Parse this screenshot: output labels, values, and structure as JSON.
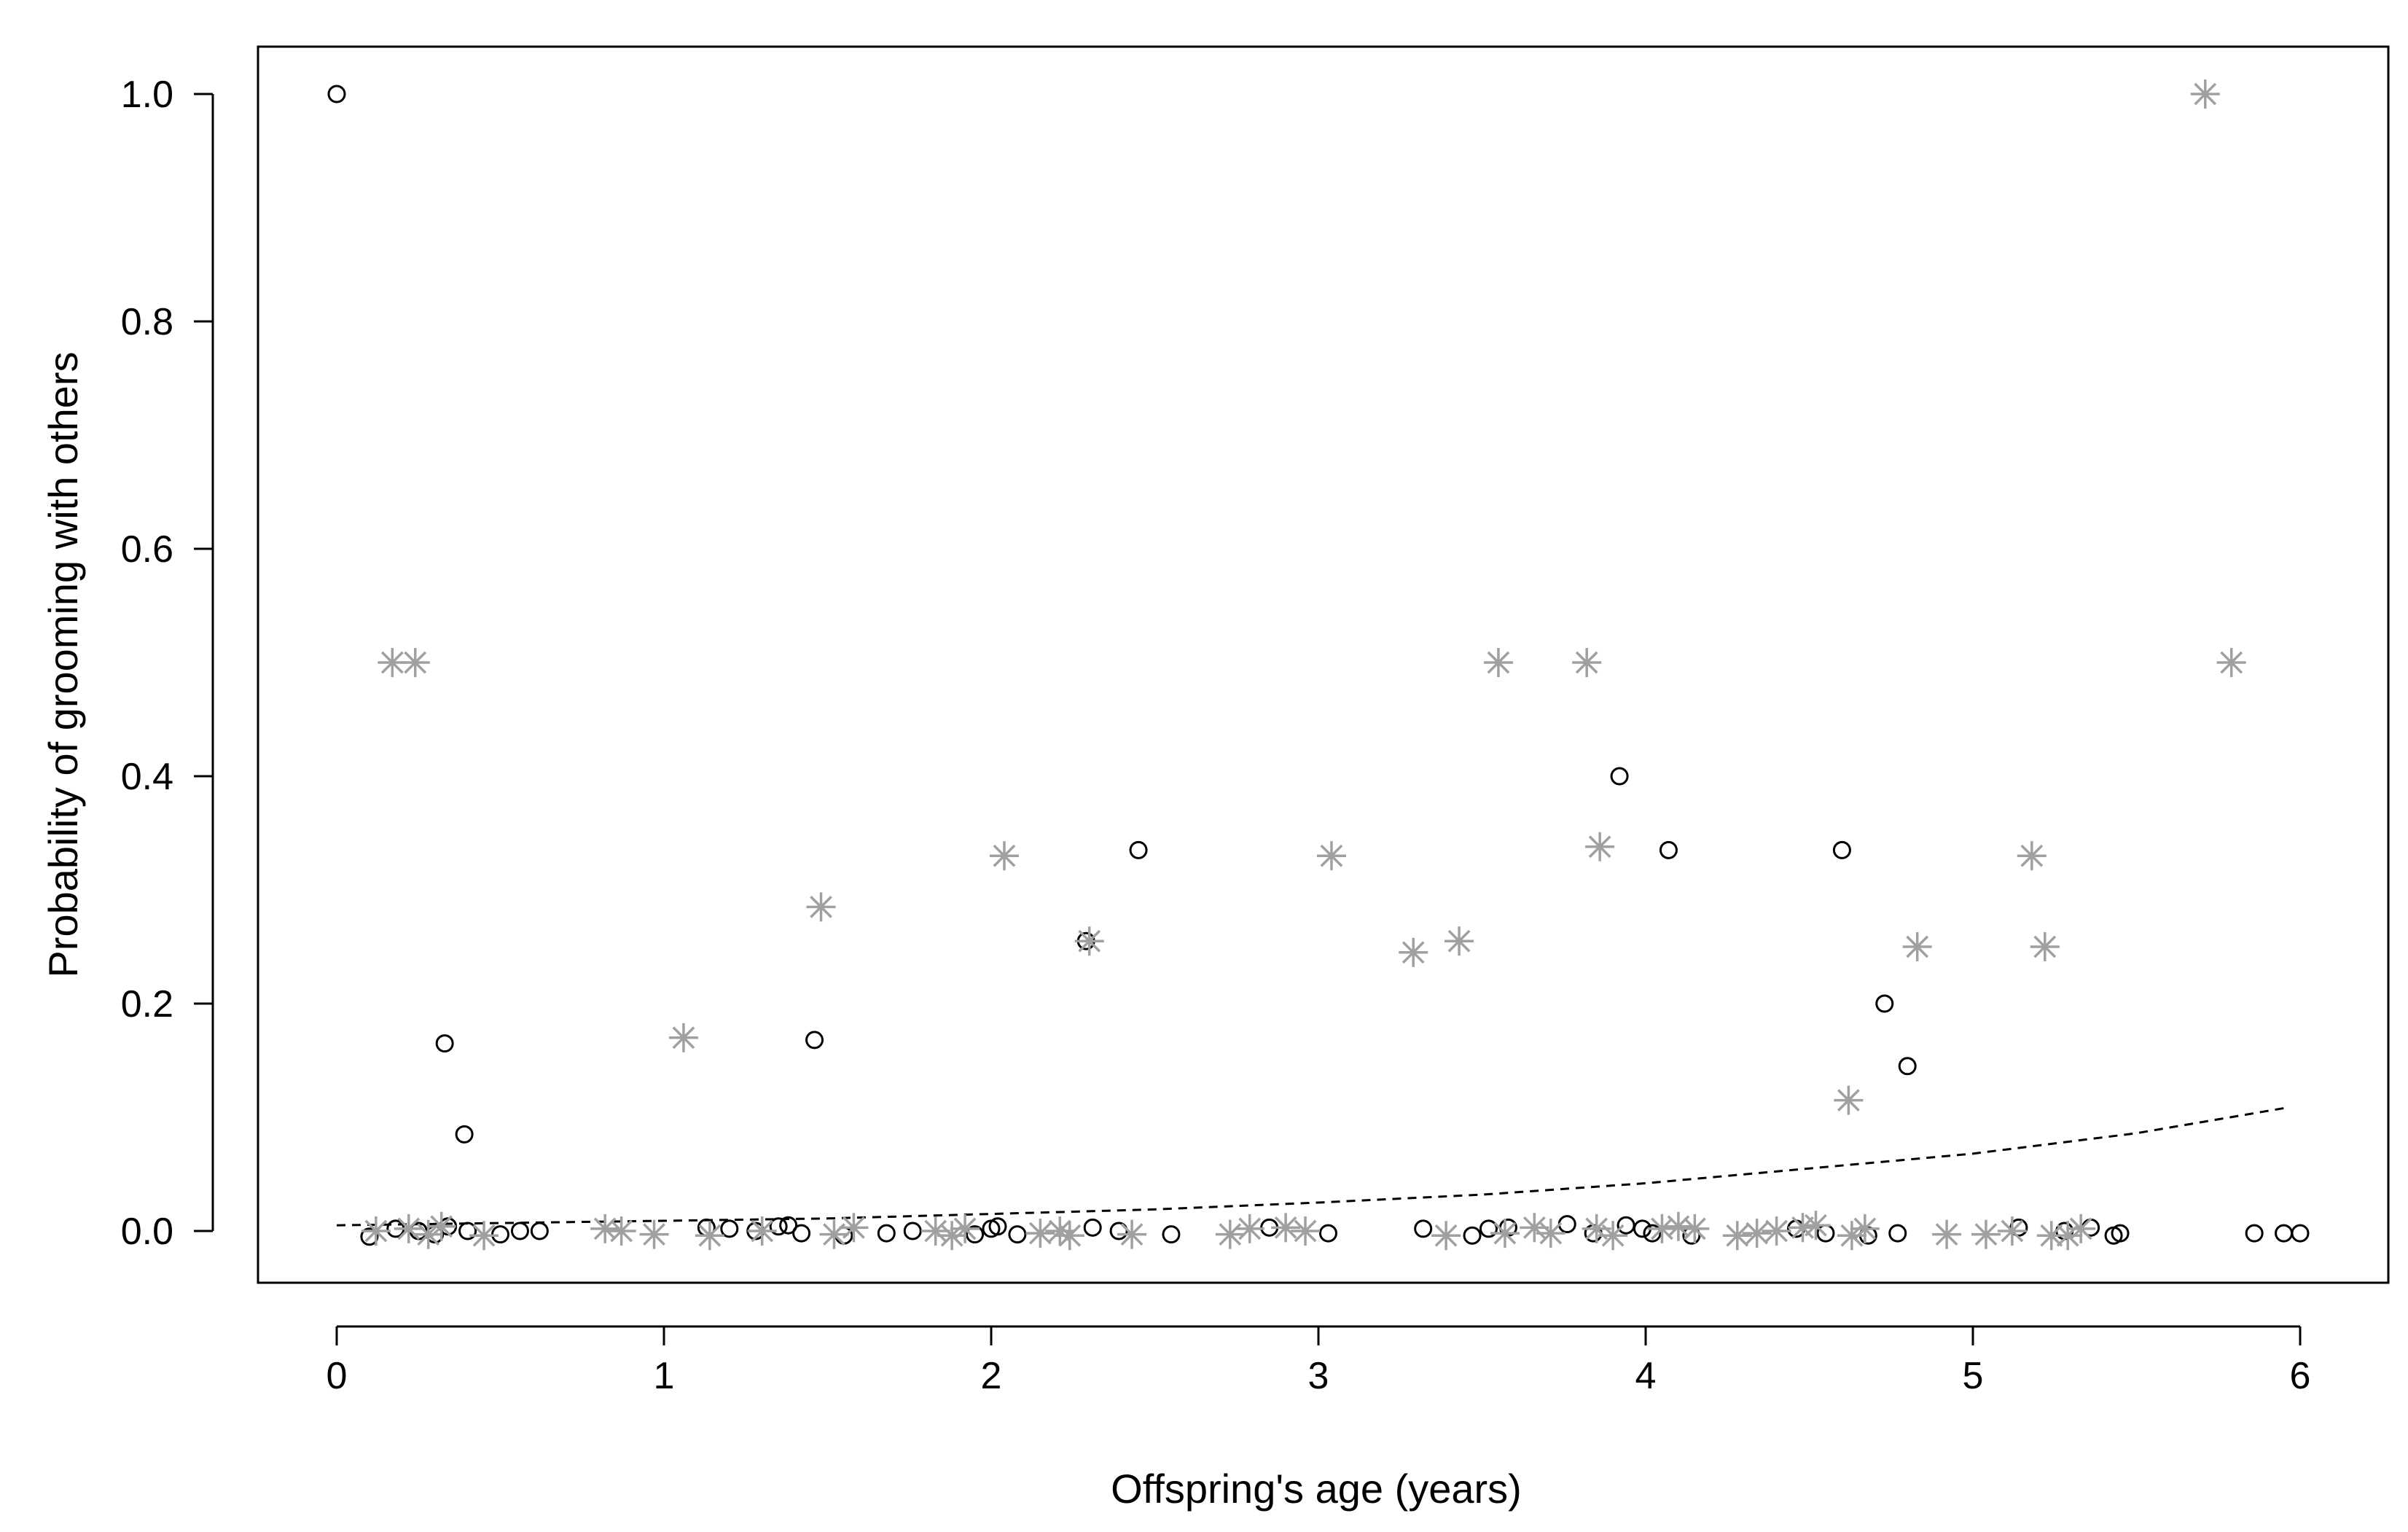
{
  "chart_data": {
    "type": "scatter",
    "title": "",
    "xlabel": "Offspring's age (years)",
    "ylabel": "Probability of grooming with others",
    "xlim": [
      -0.25,
      6.1
    ],
    "ylim": [
      -0.045,
      1.04
    ],
    "xticks": [
      "0",
      "1",
      "2",
      "3",
      "4",
      "5",
      "6"
    ],
    "yticks": [
      "0.0",
      "0.2",
      "0.4",
      "0.6",
      "0.8",
      "1.0"
    ],
    "grid": false,
    "legend": "none",
    "colors": {
      "circle": "#000000",
      "star": "#a0a0a0",
      "line": "#000000"
    },
    "series": [
      {
        "marker": "circle",
        "points": [
          [
            0.0,
            1.0
          ],
          [
            0.33,
            0.165
          ],
          [
            0.39,
            0.085
          ],
          [
            1.46,
            0.168
          ],
          [
            2.29,
            0.255
          ],
          [
            2.45,
            0.335
          ],
          [
            3.92,
            0.4
          ],
          [
            4.07,
            0.335
          ],
          [
            4.6,
            0.335
          ],
          [
            4.73,
            0.2
          ],
          [
            4.8,
            0.145
          ],
          [
            0.1,
            -0.005
          ],
          [
            0.18,
            0.002
          ],
          [
            0.25,
            0.0
          ],
          [
            0.3,
            -0.003
          ],
          [
            0.34,
            0.004
          ],
          [
            0.4,
            0.0
          ],
          [
            0.5,
            -0.003
          ],
          [
            0.56,
            0.0
          ],
          [
            0.62,
            0.0
          ],
          [
            1.13,
            0.003
          ],
          [
            1.2,
            0.002
          ],
          [
            1.28,
            0.0
          ],
          [
            1.35,
            0.004
          ],
          [
            1.38,
            0.005
          ],
          [
            1.42,
            -0.002
          ],
          [
            1.55,
            -0.004
          ],
          [
            1.68,
            -0.002
          ],
          [
            1.76,
            0.0
          ],
          [
            1.95,
            -0.003
          ],
          [
            2.0,
            0.002
          ],
          [
            2.02,
            0.004
          ],
          [
            2.08,
            -0.003
          ],
          [
            2.31,
            0.003
          ],
          [
            2.39,
            0.0
          ],
          [
            2.55,
            -0.003
          ],
          [
            2.85,
            0.003
          ],
          [
            3.03,
            -0.002
          ],
          [
            3.32,
            0.002
          ],
          [
            3.47,
            -0.004
          ],
          [
            3.52,
            0.002
          ],
          [
            3.58,
            0.003
          ],
          [
            3.76,
            0.006
          ],
          [
            3.84,
            -0.002
          ],
          [
            3.94,
            0.005
          ],
          [
            3.99,
            0.002
          ],
          [
            4.02,
            -0.002
          ],
          [
            4.14,
            -0.004
          ],
          [
            4.46,
            0.002
          ],
          [
            4.55,
            -0.002
          ],
          [
            4.68,
            -0.004
          ],
          [
            4.77,
            -0.002
          ],
          [
            5.14,
            0.003
          ],
          [
            5.28,
            0.0
          ],
          [
            5.36,
            0.003
          ],
          [
            5.43,
            -0.004
          ],
          [
            5.45,
            -0.002
          ],
          [
            5.86,
            -0.002
          ],
          [
            5.95,
            -0.002
          ],
          [
            6.0,
            -0.002
          ]
        ]
      },
      {
        "marker": "star",
        "points": [
          [
            0.17,
            0.5
          ],
          [
            0.24,
            0.5
          ],
          [
            1.06,
            0.17
          ],
          [
            1.48,
            0.285
          ],
          [
            2.04,
            0.33
          ],
          [
            2.3,
            0.255
          ],
          [
            3.04,
            0.33
          ],
          [
            3.29,
            0.245
          ],
          [
            3.43,
            0.255
          ],
          [
            3.55,
            0.5
          ],
          [
            3.82,
            0.5
          ],
          [
            3.86,
            0.338
          ],
          [
            4.62,
            0.115
          ],
          [
            4.83,
            0.25
          ],
          [
            5.18,
            0.33
          ],
          [
            5.22,
            0.25
          ],
          [
            5.71,
            1.0
          ],
          [
            5.79,
            0.5
          ],
          [
            0.12,
            0.0
          ],
          [
            0.22,
            0.002
          ],
          [
            0.28,
            -0.003
          ],
          [
            0.32,
            0.004
          ],
          [
            0.45,
            -0.004
          ],
          [
            0.82,
            0.002
          ],
          [
            0.87,
            0.0
          ],
          [
            0.97,
            -0.003
          ],
          [
            1.14,
            -0.004
          ],
          [
            1.3,
            0.0
          ],
          [
            1.52,
            -0.003
          ],
          [
            1.58,
            0.003
          ],
          [
            1.83,
            0.0
          ],
          [
            1.88,
            -0.004
          ],
          [
            1.92,
            0.002
          ],
          [
            2.15,
            -0.002
          ],
          [
            2.21,
            0.0
          ],
          [
            2.24,
            -0.004
          ],
          [
            2.43,
            -0.003
          ],
          [
            2.73,
            -0.003
          ],
          [
            2.79,
            0.002
          ],
          [
            2.9,
            0.003
          ],
          [
            2.96,
            0.0
          ],
          [
            3.39,
            -0.004
          ],
          [
            3.57,
            -0.002
          ],
          [
            3.66,
            0.003
          ],
          [
            3.71,
            -0.002
          ],
          [
            3.85,
            0.002
          ],
          [
            3.9,
            -0.004
          ],
          [
            4.05,
            0.002
          ],
          [
            4.1,
            0.004
          ],
          [
            4.15,
            0.002
          ],
          [
            4.28,
            -0.004
          ],
          [
            4.34,
            -0.002
          ],
          [
            4.4,
            0.0
          ],
          [
            4.48,
            0.003
          ],
          [
            4.52,
            0.005
          ],
          [
            4.63,
            -0.004
          ],
          [
            4.67,
            0.002
          ],
          [
            4.92,
            -0.003
          ],
          [
            5.04,
            -0.003
          ],
          [
            5.12,
            0.0
          ],
          [
            5.24,
            -0.004
          ],
          [
            5.29,
            -0.004
          ],
          [
            5.33,
            0.002
          ]
        ]
      }
    ],
    "trend_line": {
      "style": "dashed",
      "x": [
        0.0,
        0.5,
        1.0,
        1.5,
        2.0,
        2.5,
        3.0,
        3.5,
        4.0,
        4.5,
        5.0,
        5.5,
        5.95
      ],
      "y": [
        0.005,
        0.007,
        0.009,
        0.011,
        0.015,
        0.019,
        0.025,
        0.032,
        0.042,
        0.055,
        0.068,
        0.086,
        0.108
      ]
    }
  }
}
